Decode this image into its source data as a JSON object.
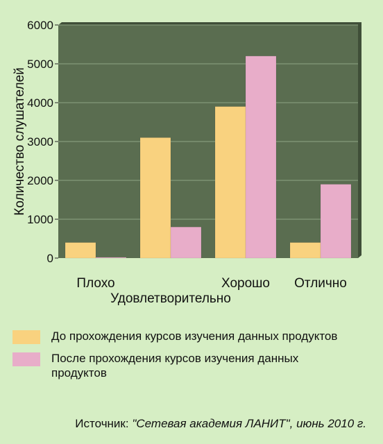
{
  "chart_data": {
    "type": "bar",
    "ylabel": "Количество слушателей",
    "ylim": [
      0,
      6000
    ],
    "yticks": [
      0,
      1000,
      2000,
      3000,
      4000,
      5000,
      6000
    ],
    "grid": true,
    "categories": [
      "Плохо",
      "Удовлетворительно",
      "Хорошо",
      "Отлично"
    ],
    "series": [
      {
        "name": "До прохождения курсов изучения данных продуктов",
        "color": "#f9d27f",
        "values": [
          400,
          3100,
          3900,
          400
        ]
      },
      {
        "name": "После прохождения курсов изучения данных продуктов",
        "color": "#e8adc9",
        "values": [
          20,
          800,
          5200,
          1900
        ]
      }
    ],
    "legend_position": "bottom"
  },
  "source": {
    "prefix": "Источник: ",
    "name": "\"Сетевая академия ЛАНИТ\"",
    "suffix": ", июнь 2010 г."
  },
  "colors": {
    "page_background": "#d6eec4",
    "plot_background": "#5a6d50",
    "grid": "#8fa585"
  }
}
